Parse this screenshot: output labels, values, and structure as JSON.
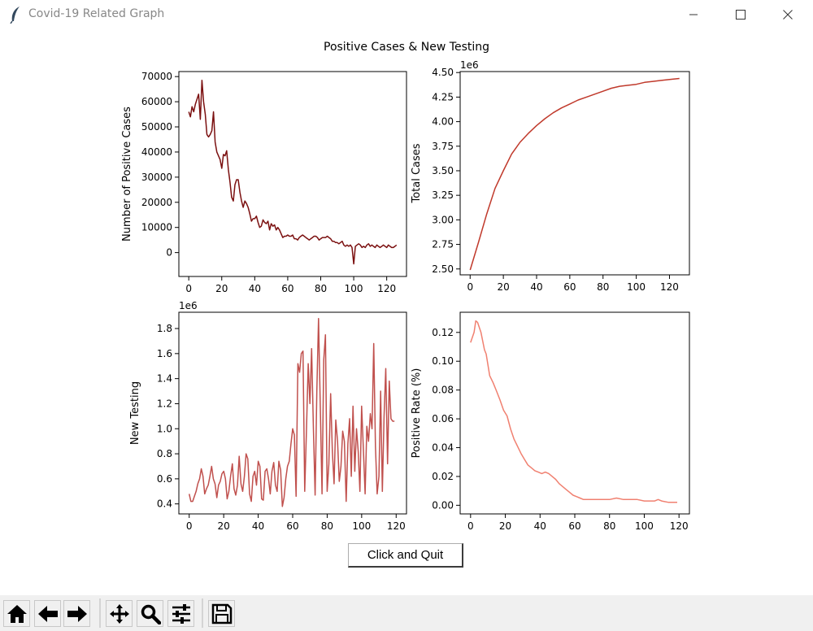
{
  "window": {
    "title": "Covid-19 Related Graph"
  },
  "figure": {
    "suptitle": "Positive Cases & New Testing"
  },
  "chart_data": [
    {
      "type": "line",
      "color": "#7b1010",
      "ylabel": "Number of Positive Cases",
      "xlabel": "",
      "xlim": [
        -6,
        132
      ],
      "ylim": [
        -9500,
        72000
      ],
      "xticks": [
        0,
        20,
        40,
        60,
        80,
        100,
        120
      ],
      "yticks": [
        0,
        10000,
        20000,
        30000,
        40000,
        50000,
        60000,
        70000
      ],
      "offset_label": "",
      "points": [
        [
          0,
          56000
        ],
        [
          1,
          54000
        ],
        [
          2,
          58000
        ],
        [
          3,
          56000
        ],
        [
          4,
          59000
        ],
        [
          5,
          61000
        ],
        [
          6,
          63000
        ],
        [
          7,
          53000
        ],
        [
          8,
          68500
        ],
        [
          9,
          60000
        ],
        [
          10,
          55000
        ],
        [
          11,
          47000
        ],
        [
          12,
          46000
        ],
        [
          13,
          47000
        ],
        [
          14,
          48500
        ],
        [
          15,
          56000
        ],
        [
          16,
          44000
        ],
        [
          17,
          40000
        ],
        [
          18,
          38500
        ],
        [
          19,
          37000
        ],
        [
          20,
          33500
        ],
        [
          21,
          39000
        ],
        [
          22,
          38500
        ],
        [
          23,
          40500
        ],
        [
          24,
          33000
        ],
        [
          25,
          28000
        ],
        [
          26,
          22000
        ],
        [
          27,
          20500
        ],
        [
          28,
          27000
        ],
        [
          29,
          29000
        ],
        [
          30,
          29000
        ],
        [
          31,
          24000
        ],
        [
          32,
          20500
        ],
        [
          33,
          18000
        ],
        [
          34,
          20500
        ],
        [
          35,
          19500
        ],
        [
          36,
          18000
        ],
        [
          37,
          15500
        ],
        [
          38,
          12500
        ],
        [
          39,
          13500
        ],
        [
          40,
          13500
        ],
        [
          41,
          14500
        ],
        [
          42,
          12000
        ],
        [
          43,
          10000
        ],
        [
          44,
          10500
        ],
        [
          45,
          13000
        ],
        [
          46,
          12000
        ],
        [
          47,
          11500
        ],
        [
          48,
          12500
        ],
        [
          49,
          9000
        ],
        [
          50,
          11500
        ],
        [
          51,
          10500
        ],
        [
          52,
          11000
        ],
        [
          53,
          9000
        ],
        [
          54,
          10000
        ],
        [
          55,
          9000
        ],
        [
          56,
          7500
        ],
        [
          57,
          6000
        ],
        [
          58,
          6500
        ],
        [
          59,
          6500
        ],
        [
          60,
          7000
        ],
        [
          61,
          6500
        ],
        [
          62,
          6500
        ],
        [
          63,
          7000
        ],
        [
          64,
          5500
        ],
        [
          65,
          5500
        ],
        [
          66,
          5000
        ],
        [
          67,
          6000
        ],
        [
          68,
          6500
        ],
        [
          69,
          7000
        ],
        [
          70,
          6500
        ],
        [
          71,
          6000
        ],
        [
          72,
          5500
        ],
        [
          73,
          5000
        ],
        [
          74,
          5500
        ],
        [
          75,
          6000
        ],
        [
          76,
          6500
        ],
        [
          77,
          6500
        ],
        [
          78,
          6000
        ],
        [
          79,
          5000
        ],
        [
          80,
          5500
        ],
        [
          81,
          6000
        ],
        [
          82,
          6000
        ],
        [
          83,
          6000
        ],
        [
          84,
          6500
        ],
        [
          85,
          6000
        ],
        [
          86,
          5500
        ],
        [
          87,
          4500
        ],
        [
          88,
          4500
        ],
        [
          89,
          4000
        ],
        [
          90,
          4000
        ],
        [
          91,
          3500
        ],
        [
          92,
          4000
        ],
        [
          93,
          4500
        ],
        [
          94,
          3000
        ],
        [
          95,
          2500
        ],
        [
          96,
          3000
        ],
        [
          97,
          2500
        ],
        [
          98,
          3000
        ],
        [
          99,
          2000
        ],
        [
          100,
          -4500
        ],
        [
          101,
          2500
        ],
        [
          102,
          3000
        ],
        [
          103,
          3500
        ],
        [
          104,
          3000
        ],
        [
          105,
          2000
        ],
        [
          106,
          2500
        ],
        [
          107,
          2000
        ],
        [
          108,
          3000
        ],
        [
          109,
          3500
        ],
        [
          110,
          2500
        ],
        [
          111,
          3000
        ],
        [
          112,
          2500
        ],
        [
          113,
          2000
        ],
        [
          114,
          3000
        ],
        [
          115,
          2500
        ],
        [
          116,
          2000
        ],
        [
          117,
          2500
        ],
        [
          118,
          3000
        ],
        [
          119,
          2500
        ],
        [
          120,
          2000
        ],
        [
          121,
          3000
        ],
        [
          122,
          2500
        ],
        [
          123,
          2000
        ],
        [
          124,
          2000
        ],
        [
          125,
          2500
        ],
        [
          126,
          3000
        ]
      ]
    },
    {
      "type": "line",
      "color": "#c0392b",
      "ylabel": "Total Cases",
      "xlabel": "",
      "xlim": [
        -6,
        132
      ],
      "ylim": [
        2.44,
        4.51
      ],
      "xticks": [
        0,
        20,
        40,
        60,
        80,
        100,
        120
      ],
      "yticks": [
        2.5,
        2.75,
        3.0,
        3.25,
        3.5,
        3.75,
        4.0,
        4.25,
        4.5
      ],
      "offset_label": "1e6",
      "points": [
        [
          0,
          2.49
        ],
        [
          5,
          2.77
        ],
        [
          10,
          3.06
        ],
        [
          15,
          3.32
        ],
        [
          20,
          3.5
        ],
        [
          25,
          3.67
        ],
        [
          30,
          3.79
        ],
        [
          35,
          3.88
        ],
        [
          40,
          3.96
        ],
        [
          45,
          4.03
        ],
        [
          50,
          4.09
        ],
        [
          55,
          4.14
        ],
        [
          60,
          4.18
        ],
        [
          65,
          4.22
        ],
        [
          70,
          4.25
        ],
        [
          75,
          4.28
        ],
        [
          80,
          4.31
        ],
        [
          85,
          4.34
        ],
        [
          90,
          4.36
        ],
        [
          95,
          4.37
        ],
        [
          100,
          4.38
        ],
        [
          105,
          4.4
        ],
        [
          110,
          4.41
        ],
        [
          115,
          4.42
        ],
        [
          120,
          4.43
        ],
        [
          126,
          4.44
        ]
      ]
    },
    {
      "type": "line",
      "color": "#c0504d",
      "ylabel": "New Testing",
      "xlabel": "",
      "xlim": [
        -6,
        126
      ],
      "ylim": [
        0.32,
        1.93
      ],
      "xticks": [
        0,
        20,
        40,
        60,
        80,
        100,
        120
      ],
      "yticks": [
        0.4,
        0.6,
        0.8,
        1.0,
        1.2,
        1.4,
        1.6,
        1.8
      ],
      "offset_label": "1e6",
      "points": [
        [
          0,
          0.48
        ],
        [
          1,
          0.42
        ],
        [
          2,
          0.42
        ],
        [
          3,
          0.46
        ],
        [
          4,
          0.5
        ],
        [
          5,
          0.56
        ],
        [
          6,
          0.6
        ],
        [
          7,
          0.68
        ],
        [
          8,
          0.62
        ],
        [
          9,
          0.48
        ],
        [
          10,
          0.52
        ],
        [
          11,
          0.55
        ],
        [
          12,
          0.62
        ],
        [
          13,
          0.7
        ],
        [
          14,
          0.6
        ],
        [
          15,
          0.56
        ],
        [
          16,
          0.45
        ],
        [
          17,
          0.55
        ],
        [
          18,
          0.58
        ],
        [
          19,
          0.64
        ],
        [
          20,
          0.66
        ],
        [
          21,
          0.6
        ],
        [
          22,
          0.44
        ],
        [
          23,
          0.5
        ],
        [
          24,
          0.62
        ],
        [
          25,
          0.72
        ],
        [
          26,
          0.52
        ],
        [
          27,
          0.47
        ],
        [
          28,
          0.55
        ],
        [
          29,
          0.78
        ],
        [
          30,
          0.56
        ],
        [
          31,
          0.5
        ],
        [
          32,
          0.62
        ],
        [
          33,
          0.8
        ],
        [
          34,
          0.76
        ],
        [
          35,
          0.48
        ],
        [
          36,
          0.42
        ],
        [
          37,
          0.62
        ],
        [
          38,
          0.66
        ],
        [
          39,
          0.55
        ],
        [
          40,
          0.74
        ],
        [
          41,
          0.7
        ],
        [
          42,
          0.44
        ],
        [
          43,
          0.43
        ],
        [
          44,
          0.66
        ],
        [
          45,
          0.68
        ],
        [
          46,
          0.6
        ],
        [
          47,
          0.48
        ],
        [
          48,
          0.66
        ],
        [
          49,
          0.73
        ],
        [
          50,
          0.55
        ],
        [
          51,
          0.5
        ],
        [
          52,
          0.74
        ],
        [
          53,
          0.67
        ],
        [
          54,
          0.38
        ],
        [
          55,
          0.45
        ],
        [
          56,
          0.6
        ],
        [
          57,
          0.7
        ],
        [
          58,
          0.74
        ],
        [
          59,
          0.88
        ],
        [
          60,
          1.0
        ],
        [
          61,
          0.95
        ],
        [
          62,
          0.46
        ],
        [
          63,
          1.52
        ],
        [
          64,
          1.45
        ],
        [
          65,
          1.6
        ],
        [
          66,
          1.62
        ],
        [
          67,
          0.5
        ],
        [
          68,
          1.0
        ],
        [
          69,
          1.52
        ],
        [
          70,
          1.2
        ],
        [
          71,
          1.64
        ],
        [
          72,
          1.0
        ],
        [
          73,
          0.47
        ],
        [
          74,
          1.3
        ],
        [
          75,
          1.88
        ],
        [
          76,
          1.2
        ],
        [
          77,
          0.48
        ],
        [
          78,
          1.55
        ],
        [
          79,
          1.75
        ],
        [
          80,
          0.5
        ],
        [
          81,
          0.72
        ],
        [
          82,
          1.28
        ],
        [
          83,
          0.82
        ],
        [
          84,
          0.56
        ],
        [
          85,
          1.07
        ],
        [
          86,
          0.9
        ],
        [
          87,
          0.58
        ],
        [
          88,
          0.7
        ],
        [
          89,
          0.98
        ],
        [
          90,
          0.9
        ],
        [
          91,
          0.42
        ],
        [
          92,
          0.88
        ],
        [
          93,
          1.08
        ],
        [
          94,
          0.62
        ],
        [
          95,
          1.18
        ],
        [
          96,
          0.66
        ],
        [
          97,
          1.0
        ],
        [
          98,
          0.82
        ],
        [
          99,
          0.5
        ],
        [
          100,
          1.18
        ],
        [
          101,
          0.83
        ],
        [
          102,
          0.48
        ],
        [
          103,
          1.02
        ],
        [
          104,
          0.9
        ],
        [
          105,
          1.12
        ],
        [
          106,
          1.0
        ],
        [
          107,
          1.68
        ],
        [
          108,
          0.86
        ],
        [
          109,
          0.48
        ],
        [
          110,
          0.62
        ],
        [
          111,
          1.3
        ],
        [
          112,
          0.5
        ],
        [
          113,
          1.1
        ],
        [
          114,
          1.48
        ],
        [
          115,
          0.72
        ],
        [
          116,
          1.38
        ],
        [
          117,
          1.08
        ],
        [
          118,
          1.06
        ],
        [
          119,
          1.06
        ]
      ]
    },
    {
      "type": "line",
      "color": "#f08070",
      "ylabel": "Positive Rate (%)",
      "xlabel": "",
      "xlim": [
        -6,
        126
      ],
      "ylim": [
        -0.006,
        0.134
      ],
      "xticks": [
        0,
        20,
        40,
        60,
        80,
        100,
        120
      ],
      "yticks": [
        0.0,
        0.02,
        0.04,
        0.06,
        0.08,
        0.1,
        0.12
      ],
      "offset_label": "",
      "points": [
        [
          0,
          0.113
        ],
        [
          2,
          0.12
        ],
        [
          3,
          0.128
        ],
        [
          4,
          0.127
        ],
        [
          6,
          0.12
        ],
        [
          8,
          0.108
        ],
        [
          9,
          0.105
        ],
        [
          11,
          0.09
        ],
        [
          13,
          0.085
        ],
        [
          15,
          0.079
        ],
        [
          17,
          0.073
        ],
        [
          19,
          0.066
        ],
        [
          21,
          0.062
        ],
        [
          23,
          0.053
        ],
        [
          25,
          0.046
        ],
        [
          27,
          0.041
        ],
        [
          29,
          0.036
        ],
        [
          31,
          0.032
        ],
        [
          33,
          0.028
        ],
        [
          35,
          0.026
        ],
        [
          37,
          0.024
        ],
        [
          39,
          0.023
        ],
        [
          41,
          0.022
        ],
        [
          43,
          0.023
        ],
        [
          45,
          0.022
        ],
        [
          47,
          0.02
        ],
        [
          49,
          0.018
        ],
        [
          51,
          0.015
        ],
        [
          53,
          0.013
        ],
        [
          55,
          0.011
        ],
        [
          57,
          0.009
        ],
        [
          59,
          0.007
        ],
        [
          61,
          0.006
        ],
        [
          63,
          0.005
        ],
        [
          65,
          0.004
        ],
        [
          70,
          0.004
        ],
        [
          75,
          0.004
        ],
        [
          80,
          0.004
        ],
        [
          84,
          0.005
        ],
        [
          88,
          0.004
        ],
        [
          92,
          0.004
        ],
        [
          96,
          0.004
        ],
        [
          100,
          0.003
        ],
        [
          104,
          0.003
        ],
        [
          106,
          0.003
        ],
        [
          108,
          0.004
        ],
        [
          110,
          0.003
        ],
        [
          114,
          0.002
        ],
        [
          119,
          0.002
        ]
      ]
    }
  ],
  "buttons": {
    "quit": "Click and Quit"
  },
  "toolbar": [
    {
      "name": "home-icon"
    },
    {
      "name": "back-icon"
    },
    {
      "name": "forward-icon"
    },
    {
      "name": "pan-icon"
    },
    {
      "name": "zoom-icon"
    },
    {
      "name": "configure-subplots-icon"
    },
    {
      "name": "save-icon"
    }
  ]
}
